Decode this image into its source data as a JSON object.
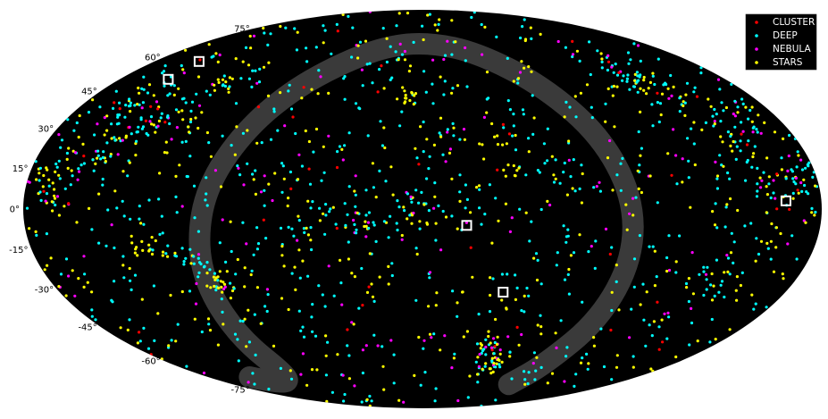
{
  "chart_data": {
    "type": "scatter",
    "projection": "mollweide",
    "background": "#000000",
    "lat_ticks": [
      {
        "lat": 75,
        "label": "75°"
      },
      {
        "lat": 60,
        "label": "60°"
      },
      {
        "lat": 45,
        "label": "45°"
      },
      {
        "lat": 30,
        "label": "30°"
      },
      {
        "lat": 15,
        "label": "15°"
      },
      {
        "lat": 0,
        "label": "0°"
      },
      {
        "lat": -15,
        "label": "-15°"
      },
      {
        "lat": -30,
        "label": "-30°"
      },
      {
        "lat": -45,
        "label": "-45°"
      },
      {
        "lat": -60,
        "label": "-60°"
      },
      {
        "lat": -75,
        "label": "-75°"
      }
    ],
    "legend": {
      "placement": "top-right",
      "entries": [
        {
          "label": "CLUSTER",
          "color": "#ff0000"
        },
        {
          "label": "DEEP",
          "color": "#00ffff"
        },
        {
          "label": "NEBULA",
          "color": "#ff00ff"
        },
        {
          "label": "STARS",
          "color": "#ffff00"
        }
      ]
    },
    "band": {
      "color": "#3a3a3a",
      "path_lonlat": [
        [
          -145,
          -68
        ],
        [
          -130,
          -72
        ],
        [
          -112,
          -68
        ],
        [
          -108,
          -50
        ],
        [
          -106,
          -30
        ],
        [
          -103,
          -12
        ],
        [
          -98,
          8
        ],
        [
          -88,
          28
        ],
        [
          -74,
          45
        ],
        [
          -52,
          58
        ],
        [
          -24,
          66
        ],
        [
          8,
          67
        ],
        [
          40,
          62
        ],
        [
          68,
          48
        ],
        [
          86,
          28
        ],
        [
          95,
          5
        ],
        [
          98,
          -18
        ],
        [
          96,
          -42
        ],
        [
          88,
          -62
        ],
        [
          82,
          -72
        ]
      ]
    },
    "markers": [
      {
        "lon": -150,
        "lat": 58
      },
      {
        "lon": -151,
        "lat": 50
      },
      {
        "lon": 20,
        "lat": -6
      },
      {
        "lon": 40,
        "lat": -31
      },
      {
        "lon": 164,
        "lat": 3
      }
    ],
    "series": [
      {
        "name": "CLUSTER",
        "color": "#ff0000",
        "n": 70
      },
      {
        "name": "DEEP",
        "color": "#00ffff",
        "n": 1150
      },
      {
        "name": "NEBULA",
        "color": "#ff00ff",
        "n": 230
      },
      {
        "name": "STARS",
        "color": "#ffff00",
        "n": 750
      }
    ],
    "clumps": [
      {
        "lon": -168,
        "lat": 10,
        "r": 7,
        "n": 40,
        "w": [
          0.1,
          0.45,
          0.15,
          0.3
        ]
      },
      {
        "lon": -155,
        "lat": 40,
        "r": 8,
        "n": 45,
        "w": [
          0.1,
          0.55,
          0.1,
          0.25
        ]
      },
      {
        "lon": -130,
        "lat": 32,
        "r": 7,
        "n": 30,
        "w": [
          0.05,
          0.55,
          0.1,
          0.3
        ]
      },
      {
        "lon": -115,
        "lat": 48,
        "r": 6,
        "n": 20,
        "w": [
          0.05,
          0.5,
          0.1,
          0.35
        ]
      },
      {
        "lon": -150,
        "lat": 22,
        "r": 7,
        "n": 30,
        "w": [
          0.05,
          0.5,
          0.1,
          0.35
        ]
      },
      {
        "lon": -128,
        "lat": -14,
        "r": 3,
        "n": 14,
        "w": [
          0,
          0,
          0,
          1
        ]
      },
      {
        "lon": -95,
        "lat": -28,
        "r": 4,
        "n": 26,
        "w": [
          0,
          0.1,
          0.1,
          0.8
        ]
      },
      {
        "lon": -105,
        "lat": -20,
        "r": 4,
        "n": 16,
        "w": [
          0,
          0.6,
          0.1,
          0.3
        ]
      },
      {
        "lon": -28,
        "lat": -4,
        "r": 6,
        "n": 30,
        "w": [
          0.05,
          0.5,
          0.15,
          0.3
        ]
      },
      {
        "lon": -5,
        "lat": 0,
        "r": 6,
        "n": 25,
        "w": [
          0.05,
          0.45,
          0.1,
          0.4
        ]
      },
      {
        "lon": -5,
        "lat": 42,
        "r": 3,
        "n": 14,
        "w": [
          0,
          0.1,
          0,
          0.9
        ]
      },
      {
        "lon": 42,
        "lat": 14,
        "r": 3,
        "n": 10,
        "w": [
          0,
          0.2,
          0,
          0.8
        ]
      },
      {
        "lon": 50,
        "lat": -62,
        "r": 5,
        "n": 30,
        "w": [
          0.05,
          0.4,
          0.15,
          0.4
        ]
      },
      {
        "lon": 43,
        "lat": -53,
        "r": 5,
        "n": 25,
        "w": [
          0.05,
          0.45,
          0.1,
          0.4
        ]
      },
      {
        "lon": 125,
        "lat": 50,
        "r": 10,
        "n": 55,
        "w": [
          0.05,
          0.55,
          0.1,
          0.3
        ]
      },
      {
        "lon": 155,
        "lat": 30,
        "r": 10,
        "n": 55,
        "w": [
          0.05,
          0.55,
          0.15,
          0.25
        ]
      },
      {
        "lon": 168,
        "lat": 10,
        "r": 8,
        "n": 40,
        "w": [
          0.05,
          0.5,
          0.15,
          0.3
        ]
      },
      {
        "lon": 145,
        "lat": -28,
        "r": 7,
        "n": 20,
        "w": [
          0,
          0.7,
          0.1,
          0.2
        ]
      },
      {
        "lon": 65,
        "lat": 15,
        "r": 5,
        "n": 14,
        "w": [
          0,
          0.4,
          0.1,
          0.5
        ]
      },
      {
        "lon": 10,
        "lat": 28,
        "r": 5,
        "n": 12,
        "w": [
          0,
          0.3,
          0.1,
          0.6
        ]
      }
    ]
  }
}
